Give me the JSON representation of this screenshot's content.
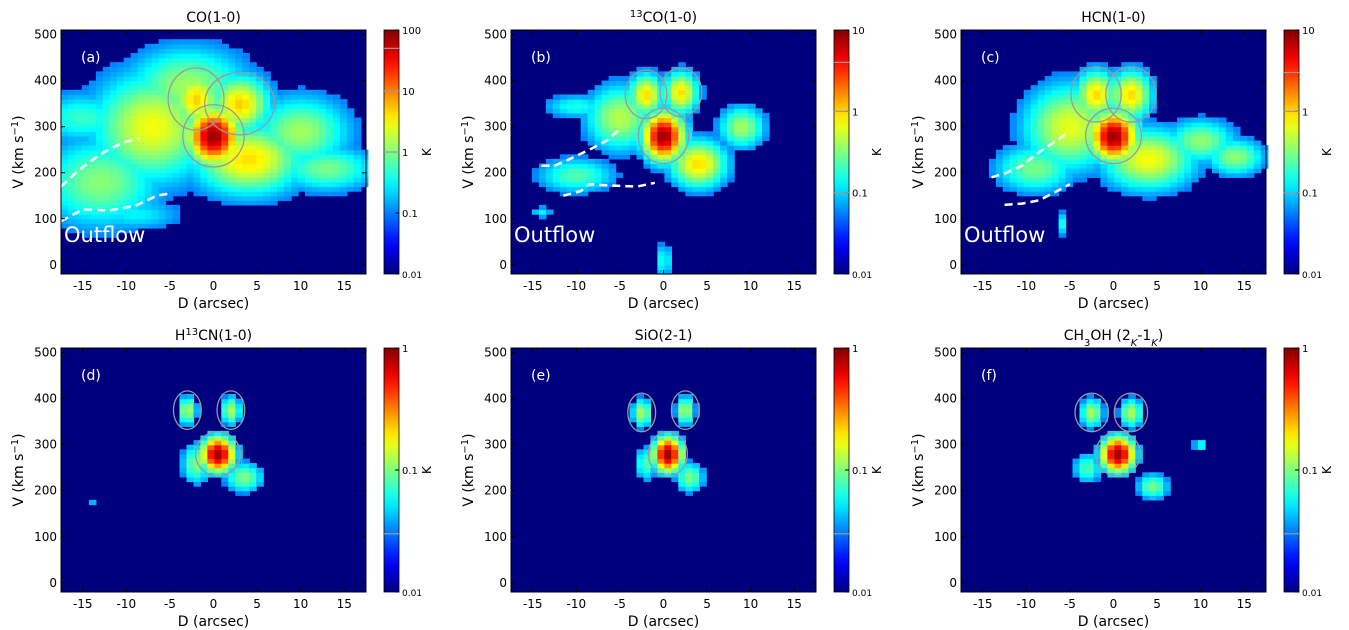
{
  "figure": {
    "xlabel": "D (arcsec)",
    "ylabel_main": "V (km s",
    "ylabel_sup": "−1",
    "ylabel_end": ")",
    "colorbar_unit": "K",
    "outflow_label": "Outflow",
    "colors": {
      "background": "#00007f",
      "contour": "#9a9a9a",
      "outflow_line": "#ffffff"
    },
    "colormap": "jet"
  },
  "chart_data": [
    {
      "id": "a",
      "type": "heatmap",
      "title": "CO(1-0)",
      "panel_label": "(a)",
      "xlim": [
        -17.5,
        17.5
      ],
      "ylim": [
        -20,
        510
      ],
      "xticks": [
        -15,
        -10,
        -5,
        0,
        5,
        10,
        15
      ],
      "yticks": [
        0,
        100,
        200,
        300,
        400,
        500
      ],
      "colorbar": {
        "scale": "log",
        "min": 0.01,
        "max": 100,
        "ticks": [
          "0.01",
          "0.1",
          "1",
          "10",
          "100"
        ],
        "contour_levels": [
          1,
          10,
          50
        ]
      },
      "peak": {
        "D": 0,
        "V": 280,
        "value_K": 60
      },
      "outflow": {
        "label": "Outflow",
        "upper_boundary": [
          [
            -17.5,
            170
          ],
          [
            -15.5,
            205
          ],
          [
            -13,
            240
          ],
          [
            -10.5,
            265
          ],
          [
            -8.5,
            275
          ]
        ],
        "lower_boundary": [
          [
            -17.5,
            95
          ],
          [
            -15,
            120
          ],
          [
            -12,
            118
          ],
          [
            -9,
            128
          ],
          [
            -6.5,
            150
          ],
          [
            -5,
            155
          ]
        ]
      }
    },
    {
      "id": "b",
      "type": "heatmap",
      "title_sup": "13",
      "title": "CO(1-0)",
      "panel_label": "(b)",
      "xlim": [
        -17.5,
        17.5
      ],
      "ylim": [
        -20,
        510
      ],
      "xticks": [
        -15,
        -10,
        -5,
        0,
        5,
        10,
        15
      ],
      "yticks": [
        0,
        100,
        200,
        300,
        400,
        500
      ],
      "colorbar": {
        "scale": "log",
        "min": 0.01,
        "max": 10,
        "ticks": [
          "0.01",
          "0.1",
          "1",
          "10"
        ],
        "contour_levels": [
          0.1,
          1,
          4
        ]
      },
      "peak": {
        "D": 0,
        "V": 280,
        "value_K": 6
      },
      "outflow": {
        "label": "Outflow",
        "upper_boundary": [
          [
            -14,
            215
          ],
          [
            -12.5,
            215
          ],
          [
            -10.5,
            232
          ],
          [
            -8.5,
            250
          ],
          [
            -6.5,
            270
          ],
          [
            -5,
            295
          ]
        ],
        "lower_boundary": [
          [
            -11.5,
            150
          ],
          [
            -9.5,
            160
          ],
          [
            -8.5,
            175
          ],
          [
            -6,
            172
          ],
          [
            -3,
            170
          ],
          [
            -1,
            178
          ]
        ]
      }
    },
    {
      "id": "c",
      "type": "heatmap",
      "title": "HCN(1-0)",
      "panel_label": "(c)",
      "xlim": [
        -17.5,
        17.5
      ],
      "ylim": [
        -20,
        510
      ],
      "xticks": [
        -15,
        -10,
        -5,
        0,
        5,
        10,
        15
      ],
      "yticks": [
        0,
        100,
        200,
        300,
        400,
        500
      ],
      "colorbar": {
        "scale": "log",
        "min": 0.01,
        "max": 10,
        "ticks": [
          "0.01",
          "0.1",
          "1",
          "10"
        ],
        "contour_levels": [
          0.1,
          1,
          3
        ]
      },
      "peak": {
        "D": 0,
        "V": 280,
        "value_K": 6
      },
      "outflow": {
        "label": "Outflow",
        "upper_boundary": [
          [
            -14,
            190
          ],
          [
            -12.5,
            198
          ],
          [
            -10.5,
            215
          ],
          [
            -8.5,
            245
          ],
          [
            -6.5,
            270
          ],
          [
            -5,
            290
          ]
        ],
        "lower_boundary": [
          [
            -12.5,
            130
          ],
          [
            -10.5,
            133
          ],
          [
            -8.5,
            140
          ],
          [
            -6.5,
            160
          ],
          [
            -5,
            175
          ]
        ]
      }
    },
    {
      "id": "d",
      "type": "heatmap",
      "title_pre": "H",
      "title_sup": "13",
      "title": "CN(1-0)",
      "panel_label": "(d)",
      "xlim": [
        -17.5,
        17.5
      ],
      "ylim": [
        -20,
        510
      ],
      "xticks": [
        -15,
        -10,
        -5,
        0,
        5,
        10,
        15
      ],
      "yticks": [
        0,
        100,
        200,
        300,
        400,
        500
      ],
      "colorbar": {
        "scale": "log",
        "min": 0.01,
        "max": 1,
        "ticks": [
          "0.01",
          "0.1",
          "1"
        ],
        "contour_levels": [
          0.03
        ]
      },
      "peak": {
        "D": 0.5,
        "V": 280,
        "value_K": 0.9
      }
    },
    {
      "id": "e",
      "type": "heatmap",
      "title": "SiO(2-1)",
      "panel_label": "(e)",
      "xlim": [
        -17.5,
        17.5
      ],
      "ylim": [
        -20,
        510
      ],
      "xticks": [
        -15,
        -10,
        -5,
        0,
        5,
        10,
        15
      ],
      "yticks": [
        0,
        100,
        200,
        300,
        400,
        500
      ],
      "colorbar": {
        "scale": "log",
        "min": 0.01,
        "max": 1,
        "ticks": [
          "0.01",
          "0.1",
          "1"
        ],
        "contour_levels": [
          0.03
        ]
      },
      "peak": {
        "D": 0.5,
        "V": 280,
        "value_K": 0.9
      }
    },
    {
      "id": "f",
      "type": "heatmap",
      "title": "CH",
      "title_sub": "3",
      "title_post": "OH (2",
      "title_sub2": "K",
      "title_mid": "-1",
      "title_sub3": "K",
      "title_end": ")",
      "panel_label": "(f)",
      "xlim": [
        -17.5,
        17.5
      ],
      "ylim": [
        -20,
        510
      ],
      "xticks": [
        -15,
        -10,
        -5,
        0,
        5,
        10,
        15
      ],
      "yticks": [
        0,
        100,
        200,
        300,
        400,
        500
      ],
      "colorbar": {
        "scale": "log",
        "min": 0.01,
        "max": 1,
        "ticks": [
          "0.01",
          "0.1",
          "1"
        ],
        "contour_levels": [
          0.03
        ]
      },
      "peak": {
        "D": 0.5,
        "V": 280,
        "value_K": 0.9
      }
    }
  ]
}
